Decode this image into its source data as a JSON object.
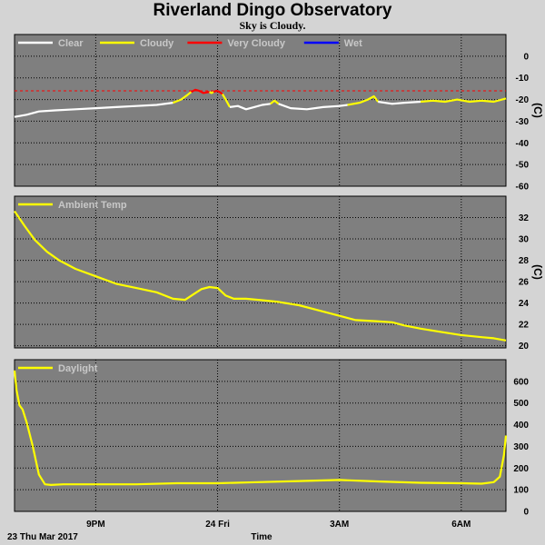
{
  "title": "Riverland Dingo Observatory",
  "subtitle": "Sky is Cloudy.",
  "x_axis": {
    "label": "Time",
    "start_label": "23 Thu Mar 2017",
    "ticks": [
      {
        "t": 2.0,
        "label": "9PM"
      },
      {
        "t": 5.0,
        "label": "24 Fri"
      },
      {
        "t": 8.0,
        "label": "3AM"
      },
      {
        "t": 11.0,
        "label": "6AM"
      }
    ],
    "range": [
      0,
      12.1
    ]
  },
  "colors": {
    "background": "#d4d4d4",
    "plot_bg": "#7f7f7f",
    "grid": "#000000",
    "clear": "#ffffff",
    "cloudy": "#ffff00",
    "very_cloudy": "#ff0000",
    "wet": "#0000ff",
    "threshold": "#ff0000"
  },
  "chart_data": [
    {
      "type": "line",
      "name": "sky",
      "legend": [
        {
          "label": "Clear",
          "color": "#ffffff"
        },
        {
          "label": "Cloudy",
          "color": "#ffff00"
        },
        {
          "label": "Very Cloudy",
          "color": "#ff0000"
        },
        {
          "label": "Wet",
          "color": "#0000ff"
        }
      ],
      "unit": "(C)",
      "ylim": [
        -60,
        10
      ],
      "yticks": [
        0,
        -10,
        -20,
        -30,
        -40,
        -50,
        -60
      ],
      "threshold": -16,
      "segments": [
        {
          "condition": "Clear",
          "x": [
            0,
            0.3,
            0.6,
            1.0,
            1.5,
            2.0,
            2.5,
            3.0,
            3.5,
            3.9
          ],
          "y": [
            -28,
            -27,
            -25.5,
            -25,
            -24.5,
            -24,
            -23.5,
            -23,
            -22.5,
            -21.5
          ]
        },
        {
          "condition": "Cloudy",
          "x": [
            3.9,
            4.1,
            4.25,
            4.35
          ],
          "y": [
            -21.5,
            -20,
            -18,
            -16.5
          ]
        },
        {
          "condition": "Very Cloudy",
          "x": [
            4.35,
            4.45,
            4.55,
            4.65,
            4.8
          ],
          "y": [
            -16.5,
            -15.5,
            -16,
            -17,
            -16.5
          ]
        },
        {
          "condition": "Cloudy",
          "x": [
            4.8,
            4.85,
            4.9
          ],
          "y": [
            -16.5,
            -17,
            -16.5
          ]
        },
        {
          "condition": "Very Cloudy",
          "x": [
            4.9,
            4.97,
            5.05,
            5.12
          ],
          "y": [
            -16.5,
            -16,
            -16.5,
            -17.5
          ]
        },
        {
          "condition": "Cloudy",
          "x": [
            5.12,
            5.2,
            5.3
          ],
          "y": [
            -17.5,
            -20,
            -23.5
          ]
        },
        {
          "condition": "Clear",
          "x": [
            5.3,
            5.5,
            5.7,
            5.9,
            6.1,
            6.3
          ],
          "y": [
            -23.5,
            -23,
            -24.5,
            -23.5,
            -22.5,
            -22
          ]
        },
        {
          "condition": "Cloudy",
          "x": [
            6.3,
            6.4,
            6.5
          ],
          "y": [
            -22,
            -20.5,
            -22
          ]
        },
        {
          "condition": "Clear",
          "x": [
            6.5,
            6.8,
            7.2,
            7.6,
            8.0,
            8.2
          ],
          "y": [
            -22,
            -24,
            -24.5,
            -23.5,
            -23,
            -22.5
          ]
        },
        {
          "condition": "Cloudy",
          "x": [
            8.2,
            8.5,
            8.7,
            8.85,
            8.95
          ],
          "y": [
            -22.5,
            -21.5,
            -20,
            -18.5,
            -21
          ]
        },
        {
          "condition": "Clear",
          "x": [
            8.95,
            9.3,
            9.6,
            10.0
          ],
          "y": [
            -21,
            -22,
            -21.5,
            -21
          ]
        },
        {
          "condition": "Cloudy",
          "x": [
            10.0,
            10.3,
            10.6,
            10.9,
            11.2,
            11.5,
            11.8,
            12.1
          ],
          "y": [
            -21,
            -20.5,
            -21,
            -20,
            -21,
            -20.5,
            -21,
            -19.5
          ]
        }
      ]
    },
    {
      "type": "line",
      "name": "ambient",
      "legend": [
        {
          "label": "Ambient Temp",
          "color": "#ffff00"
        }
      ],
      "unit": "(C)",
      "ylim": [
        19.8,
        34
      ],
      "yticks": [
        32,
        30,
        28,
        26,
        24,
        22,
        20
      ],
      "series": [
        {
          "name": "Ambient Temp",
          "x": [
            0,
            0.25,
            0.5,
            0.8,
            1.1,
            1.5,
            2.0,
            2.5,
            3.0,
            3.5,
            3.9,
            4.2,
            4.4,
            4.6,
            4.8,
            5.0,
            5.2,
            5.4,
            5.7,
            6.0,
            6.5,
            7.0,
            7.5,
            8.0,
            8.4,
            8.9,
            9.3,
            9.6,
            10.0,
            10.5,
            11.0,
            11.5,
            11.8,
            12.1
          ],
          "y": [
            32.6,
            31.2,
            29.9,
            28.8,
            28.0,
            27.2,
            26.5,
            25.8,
            25.4,
            25.0,
            24.4,
            24.3,
            24.8,
            25.3,
            25.5,
            25.4,
            24.7,
            24.4,
            24.4,
            24.3,
            24.1,
            23.8,
            23.3,
            22.8,
            22.4,
            22.3,
            22.2,
            21.9,
            21.6,
            21.3,
            21.0,
            20.8,
            20.7,
            20.5
          ]
        }
      ]
    },
    {
      "type": "line",
      "name": "daylight",
      "legend": [
        {
          "label": "Daylight",
          "color": "#ffff00"
        }
      ],
      "unit": "",
      "ylim": [
        0,
        700
      ],
      "yticks": [
        600,
        500,
        400,
        300,
        200,
        100,
        0
      ],
      "series": [
        {
          "name": "Daylight",
          "x": [
            0,
            0.05,
            0.12,
            0.2,
            0.3,
            0.45,
            0.6,
            0.75,
            0.9,
            1.2,
            2.0,
            3.0,
            4.0,
            5.0,
            6.0,
            7.0,
            8.0,
            9.0,
            10.0,
            11.0,
            11.5,
            11.8,
            11.95,
            12.05,
            12.1
          ],
          "y": [
            650,
            560,
            490,
            470,
            410,
            300,
            170,
            125,
            122,
            125,
            125,
            125,
            130,
            130,
            135,
            140,
            145,
            138,
            132,
            130,
            128,
            135,
            160,
            260,
            350
          ]
        }
      ]
    }
  ]
}
